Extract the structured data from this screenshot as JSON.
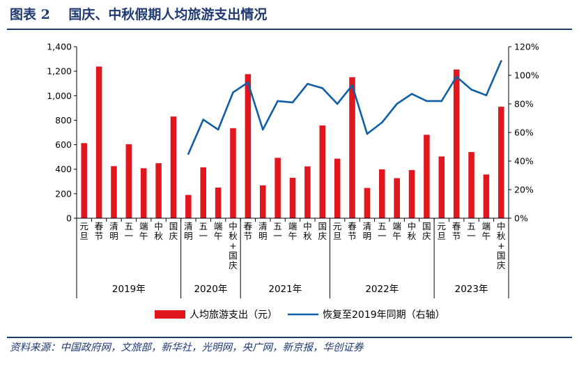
{
  "header": {
    "label": "图表 2",
    "title": "国庆、中秋假期人均旅游支出情况"
  },
  "footer": {
    "source": "资料来源：中国政府网，文旅部，新华社，光明网，央广网，新京报，华创证券"
  },
  "colors": {
    "bar": "#e0171f",
    "line": "#0f5ea8",
    "accent": "#1f3a73"
  },
  "chart_data": {
    "type": "bar+line",
    "categories": [
      "元旦",
      "春节",
      "清明",
      "五一",
      "端午",
      "中秋",
      "国庆",
      "清明",
      "五一",
      "端午",
      "中秋+国庆",
      "春节",
      "清明",
      "五一",
      "端午",
      "中秋",
      "国庆",
      "元旦",
      "春节",
      "清明",
      "五一",
      "端午",
      "中秋",
      "国庆",
      "元旦",
      "春节",
      "五一",
      "端午",
      "中秋+国庆"
    ],
    "years": [
      {
        "label": "2019年",
        "start": 0,
        "end": 6
      },
      {
        "label": "2020年",
        "start": 7,
        "end": 10
      },
      {
        "label": "2021年",
        "start": 11,
        "end": 16
      },
      {
        "label": "2022年",
        "start": 17,
        "end": 23
      },
      {
        "label": "2023年",
        "start": 24,
        "end": 28
      }
    ],
    "series": [
      {
        "name": "人均旅游支出（元）",
        "type": "bar",
        "axis": "left",
        "values": [
          613,
          1238,
          425,
          604,
          408,
          449,
          830,
          190,
          415,
          250,
          735,
          1176,
          268,
          493,
          330,
          423,
          757,
          486,
          1151,
          247,
          399,
          327,
          393,
          681,
          504,
          1214,
          540,
          357,
          910
        ]
      },
      {
        "name": "恢复至2019年同期（右轴）",
        "type": "line",
        "axis": "right",
        "values": [
          null,
          null,
          null,
          null,
          null,
          null,
          null,
          45,
          69,
          62,
          88,
          95,
          62,
          82,
          81,
          94,
          91,
          80,
          93,
          59,
          67,
          80,
          87,
          82,
          82,
          99,
          90,
          86,
          110
        ]
      }
    ],
    "left_axis": {
      "min": 0,
      "max": 1400,
      "ticks": [
        0,
        200,
        400,
        600,
        800,
        1000,
        1200,
        1400
      ],
      "tick_labels": [
        "0",
        "200",
        "400",
        "600",
        "800",
        "1,000",
        "1,200",
        "1,400"
      ]
    },
    "right_axis": {
      "min": 0,
      "max": 120,
      "ticks": [
        0,
        20,
        40,
        60,
        80,
        100,
        120
      ],
      "tick_labels": [
        "0%",
        "20%",
        "40%",
        "60%",
        "80%",
        "100%",
        "120%"
      ]
    },
    "legend_position": "bottom"
  }
}
